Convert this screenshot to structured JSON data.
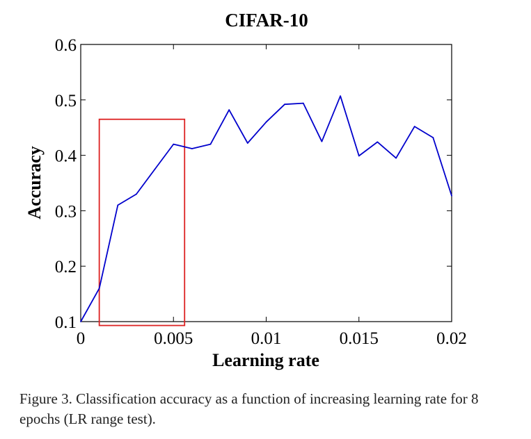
{
  "chart_data": {
    "type": "line",
    "title": "CIFAR-10",
    "xlabel": "Learning rate",
    "ylabel": "Accuracy",
    "xlim": [
      0,
      0.02
    ],
    "ylim": [
      0.1,
      0.6
    ],
    "x_ticks": [
      "0",
      "0.005",
      "0.01",
      "0.015",
      "0.02"
    ],
    "y_ticks": [
      "0.1",
      "0.2",
      "0.3",
      "0.4",
      "0.5",
      "0.6"
    ],
    "grid": false,
    "series_color": "#0000cc",
    "x": [
      0,
      0.001,
      0.002,
      0.003,
      0.004,
      0.005,
      0.006,
      0.007,
      0.008,
      0.009,
      0.01,
      0.011,
      0.012,
      0.013,
      0.014,
      0.015,
      0.016,
      0.017,
      0.018,
      0.019,
      0.02
    ],
    "values": [
      0.1,
      0.16,
      0.31,
      0.33,
      0.375,
      0.42,
      0.412,
      0.42,
      0.482,
      0.422,
      0.46,
      0.492,
      0.494,
      0.425,
      0.507,
      0.399,
      0.424,
      0.395,
      0.452,
      0.432,
      0.327
    ],
    "highlight_box": {
      "x_range": [
        0.001,
        0.0056
      ],
      "y_range": [
        0.093,
        0.465
      ],
      "color": "#dd2222"
    }
  },
  "caption": "Figure 3. Classification accuracy as a function of increasing learning rate for 8 epochs (LR range test)."
}
